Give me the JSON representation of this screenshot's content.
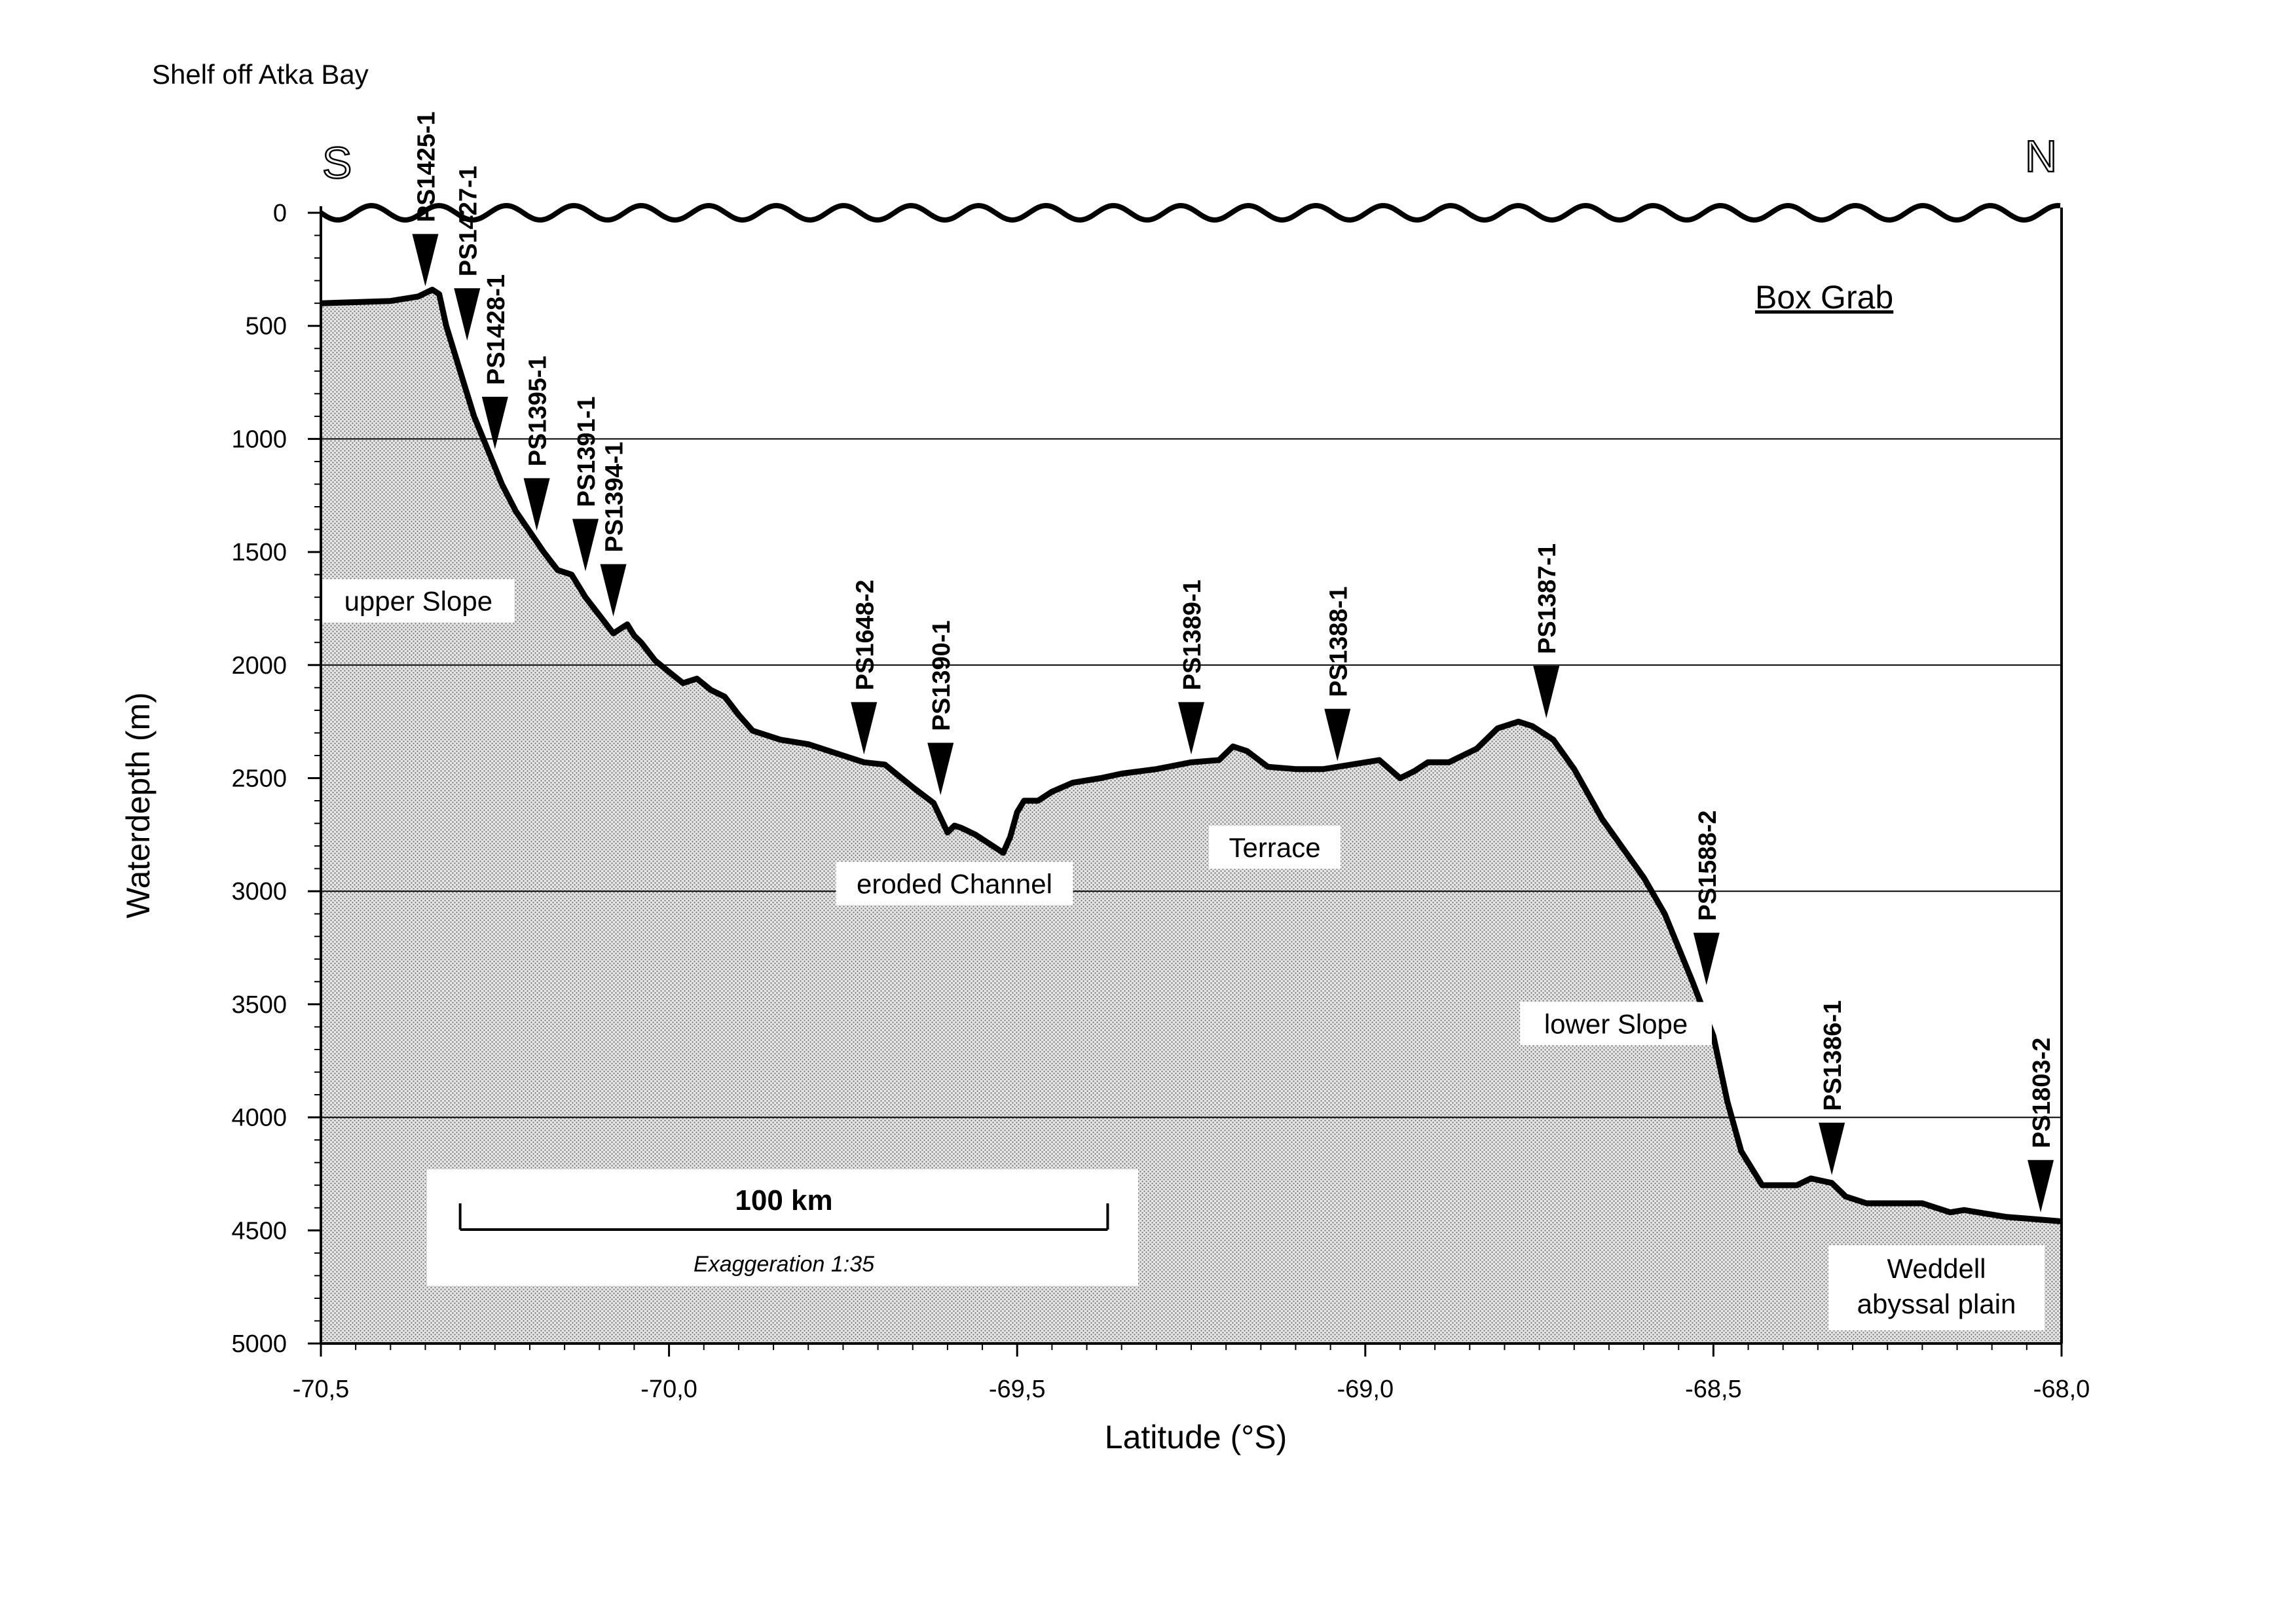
{
  "chart_data": {
    "type": "area",
    "title": "Shelf off Atka Bay",
    "legend_text": "Box Grab",
    "direction_left": "S",
    "direction_right": "N",
    "xlabel": "Latitude  (°S)",
    "ylabel": "Waterdepth (m)",
    "xlim": [
      -70.5,
      -68.0
    ],
    "ylim": [
      5000,
      0
    ],
    "x_ticks": [
      -70.5,
      -70.0,
      -69.5,
      -69.0,
      -68.5,
      -68.0
    ],
    "x_tick_labels": [
      "-70,5",
      "-70,0",
      "-69,5",
      "-69,0",
      "-68,5",
      "-68,0"
    ],
    "y_ticks": [
      0,
      500,
      1000,
      1500,
      2000,
      2500,
      3000,
      3500,
      4000,
      4500,
      5000
    ],
    "y_tick_labels": [
      "0",
      "500",
      "1000",
      "1500",
      "2000",
      "2500",
      "3000",
      "3500",
      "4000",
      "4500",
      "5000"
    ],
    "gridlines_y": [
      1000,
      2000,
      3000,
      4000
    ],
    "profile": {
      "x": [
        -70.5,
        -70.4,
        -70.36,
        -70.34,
        -70.33,
        -70.32,
        -70.3,
        -70.28,
        -70.26,
        -70.24,
        -70.22,
        -70.2,
        -70.18,
        -70.16,
        -70.14,
        -70.12,
        -70.1,
        -70.08,
        -70.06,
        -70.05,
        -70.04,
        -70.02,
        -70.0,
        -69.98,
        -69.96,
        -69.94,
        -69.92,
        -69.9,
        -69.88,
        -69.84,
        -69.8,
        -69.76,
        -69.72,
        -69.69,
        -69.65,
        -69.62,
        -69.6,
        -69.59,
        -69.58,
        -69.56,
        -69.52,
        -69.51,
        -69.5,
        -69.49,
        -69.47,
        -69.45,
        -69.42,
        -69.38,
        -69.35,
        -69.3,
        -69.25,
        -69.21,
        -69.19,
        -69.17,
        -69.14,
        -69.1,
        -69.06,
        -69.02,
        -68.98,
        -68.95,
        -68.93,
        -68.91,
        -68.88,
        -68.84,
        -68.81,
        -68.78,
        -68.76,
        -68.73,
        -68.7,
        -68.66,
        -68.6,
        -68.57,
        -68.53,
        -68.5,
        -68.48,
        -68.46,
        -68.43,
        -68.38,
        -68.36,
        -68.33,
        -68.31,
        -68.28,
        -68.24,
        -68.2,
        -68.16,
        -68.14,
        -68.12,
        -68.08,
        -68.04,
        -68.0
      ],
      "y": [
        400,
        390,
        370,
        340,
        360,
        500,
        700,
        900,
        1050,
        1200,
        1320,
        1410,
        1500,
        1580,
        1600,
        1700,
        1780,
        1860,
        1820,
        1870,
        1900,
        1980,
        2030,
        2080,
        2060,
        2110,
        2140,
        2220,
        2290,
        2330,
        2350,
        2390,
        2430,
        2440,
        2540,
        2610,
        2740,
        2710,
        2720,
        2750,
        2830,
        2760,
        2650,
        2600,
        2600,
        2560,
        2520,
        2500,
        2480,
        2460,
        2430,
        2420,
        2360,
        2380,
        2450,
        2460,
        2460,
        2440,
        2420,
        2500,
        2470,
        2430,
        2430,
        2370,
        2280,
        2250,
        2270,
        2330,
        2460,
        2680,
        2940,
        3100,
        3400,
        3640,
        3930,
        4150,
        4300,
        4300,
        4270,
        4290,
        4350,
        4380,
        4380,
        4380,
        4420,
        4410,
        4420,
        4440,
        4450,
        4460
      ]
    },
    "stations": [
      {
        "name": "PS1425-1",
        "x": -70.35,
        "depth": 360
      },
      {
        "name": "PS1427-1",
        "x": -70.29,
        "depth": 600
      },
      {
        "name": "PS1428-1",
        "x": -70.25,
        "depth": 1080
      },
      {
        "name": "PS1395-1",
        "x": -70.19,
        "depth": 1440
      },
      {
        "name": "PS1391-1",
        "x": -70.12,
        "depth": 1620
      },
      {
        "name": "PS1394-1",
        "x": -70.08,
        "depth": 1820
      },
      {
        "name": "PS1648-2",
        "x": -69.72,
        "depth": 2430
      },
      {
        "name": "PS1390-1",
        "x": -69.61,
        "depth": 2610
      },
      {
        "name": "PS1389-1",
        "x": -69.25,
        "depth": 2430
      },
      {
        "name": "PS1388-1",
        "x": -69.04,
        "depth": 2460
      },
      {
        "name": "PS1387-1",
        "x": -68.74,
        "depth": 2270
      },
      {
        "name": "PS1588-2",
        "x": -68.51,
        "depth": 3450
      },
      {
        "name": "PS1386-1",
        "x": -68.33,
        "depth": 4290
      },
      {
        "name": "PS1803-2",
        "x": -68.03,
        "depth": 4455
      }
    ],
    "region_labels": [
      {
        "text": "upper Slope",
        "x": -70.36,
        "depth": 1730
      },
      {
        "text": "eroded Channel",
        "x": -69.59,
        "depth": 2980
      },
      {
        "text": "Terrace",
        "x": -69.13,
        "depth": 2820
      },
      {
        "text": "lower Slope",
        "x": -68.64,
        "depth": 3600
      }
    ],
    "abyssal_label": [
      "Weddell",
      "abyssal plain"
    ],
    "scale_bar": {
      "label": "100 km",
      "note": "Exaggeration 1:35",
      "x_start": -70.3,
      "x_end": -69.37
    }
  }
}
